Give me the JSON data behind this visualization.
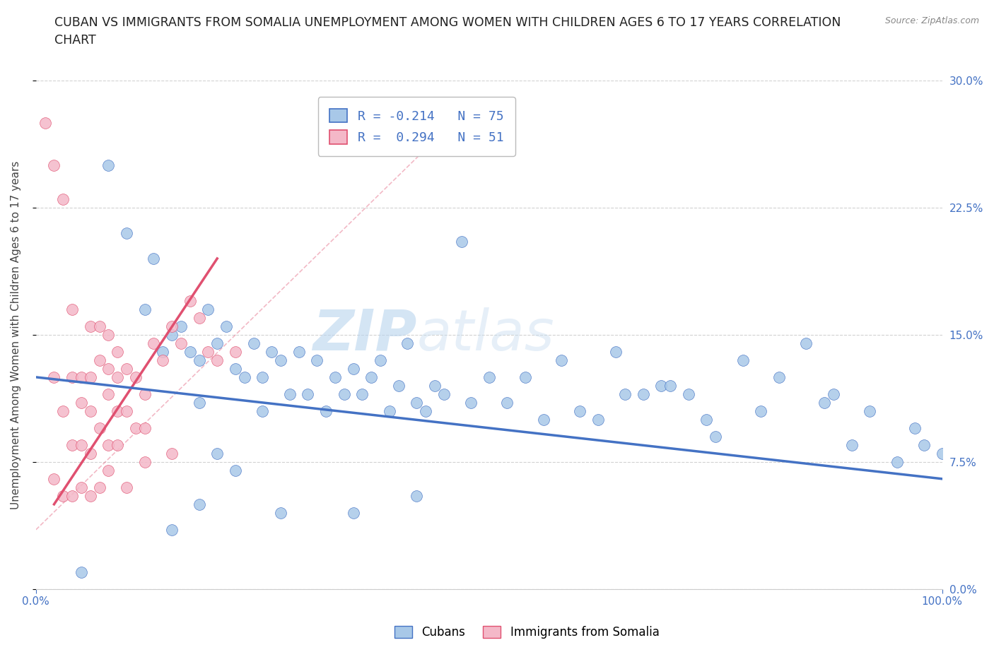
{
  "title_line1": "CUBAN VS IMMIGRANTS FROM SOMALIA UNEMPLOYMENT AMONG WOMEN WITH CHILDREN AGES 6 TO 17 YEARS CORRELATION",
  "title_line2": "CHART",
  "source": "Source: ZipAtlas.com",
  "ylabel": "Unemployment Among Women with Children Ages 6 to 17 years",
  "yticks": [
    "0.0%",
    "7.5%",
    "15.0%",
    "22.5%",
    "30.0%"
  ],
  "ytick_vals": [
    0.0,
    7.5,
    15.0,
    22.5,
    30.0
  ],
  "xlim": [
    0,
    100
  ],
  "ylim": [
    0,
    30
  ],
  "watermark_zip": "ZIP",
  "watermark_atlas": "atlas",
  "legend_label1": "R = -0.214   N = 75",
  "legend_label2": "R =  0.294   N = 51",
  "cuban_color": "#a8c8e8",
  "somalia_color": "#f4b8c8",
  "cuban_line_color": "#4472c4",
  "somalia_line_color": "#e05070",
  "cuban_scatter_x": [
    5,
    8,
    10,
    12,
    13,
    14,
    15,
    16,
    17,
    18,
    18,
    19,
    20,
    21,
    22,
    23,
    24,
    25,
    25,
    26,
    27,
    28,
    29,
    30,
    31,
    32,
    33,
    34,
    35,
    36,
    37,
    38,
    39,
    40,
    41,
    42,
    43,
    44,
    45,
    47,
    48,
    50,
    52,
    54,
    56,
    58,
    60,
    62,
    64,
    65,
    67,
    69,
    70,
    72,
    74,
    75,
    78,
    80,
    82,
    85,
    87,
    88,
    90,
    92,
    95,
    97,
    98,
    100,
    42,
    20,
    22,
    27,
    35,
    18,
    15
  ],
  "cuban_scatter_y": [
    1.0,
    25.0,
    21.0,
    16.5,
    19.5,
    14.0,
    15.0,
    15.5,
    14.0,
    13.5,
    11.0,
    16.5,
    14.5,
    15.5,
    13.0,
    12.5,
    14.5,
    12.5,
    10.5,
    14.0,
    13.5,
    11.5,
    14.0,
    11.5,
    13.5,
    10.5,
    12.5,
    11.5,
    13.0,
    11.5,
    12.5,
    13.5,
    10.5,
    12.0,
    14.5,
    11.0,
    10.5,
    12.0,
    11.5,
    20.5,
    11.0,
    12.5,
    11.0,
    12.5,
    10.0,
    13.5,
    10.5,
    10.0,
    14.0,
    11.5,
    11.5,
    12.0,
    12.0,
    11.5,
    10.0,
    9.0,
    13.5,
    10.5,
    12.5,
    14.5,
    11.0,
    11.5,
    8.5,
    10.5,
    7.5,
    9.5,
    8.5,
    8.0,
    5.5,
    8.0,
    7.0,
    4.5,
    4.5,
    5.0,
    3.5
  ],
  "somalia_scatter_x": [
    1,
    2,
    2,
    3,
    3,
    4,
    4,
    4,
    5,
    5,
    5,
    6,
    6,
    6,
    6,
    7,
    7,
    7,
    8,
    8,
    8,
    8,
    9,
    9,
    9,
    9,
    10,
    10,
    11,
    11,
    12,
    12,
    13,
    14,
    15,
    16,
    17,
    18,
    19,
    20,
    22,
    2,
    3,
    4,
    5,
    6,
    7,
    8,
    10,
    12,
    15
  ],
  "somalia_scatter_y": [
    27.5,
    25.0,
    12.5,
    23.0,
    10.5,
    16.5,
    12.5,
    8.5,
    12.5,
    11.0,
    8.5,
    15.5,
    12.5,
    10.5,
    8.0,
    15.5,
    13.5,
    9.5,
    15.0,
    13.0,
    11.5,
    8.5,
    14.0,
    12.5,
    10.5,
    8.5,
    13.0,
    10.5,
    12.5,
    9.5,
    11.5,
    9.5,
    14.5,
    13.5,
    15.5,
    14.5,
    17.0,
    16.0,
    14.0,
    13.5,
    14.0,
    6.5,
    5.5,
    5.5,
    6.0,
    5.5,
    6.0,
    7.0,
    6.0,
    7.5,
    8.0
  ],
  "cuban_trend_x0": 0,
  "cuban_trend_x1": 100,
  "cuban_trend_y0": 12.5,
  "cuban_trend_y1": 6.5,
  "somalia_trend_solid_x0": 2,
  "somalia_trend_solid_x1": 20,
  "somalia_trend_solid_y0": 5.0,
  "somalia_trend_solid_y1": 19.5,
  "somalia_trend_dash_x0": 0,
  "somalia_trend_dash_x1": 45,
  "somalia_trend_dash_y0": 3.5,
  "somalia_trend_dash_y1": 27.0,
  "title_fontsize": 12.5,
  "axis_label_fontsize": 11,
  "tick_fontsize": 11
}
